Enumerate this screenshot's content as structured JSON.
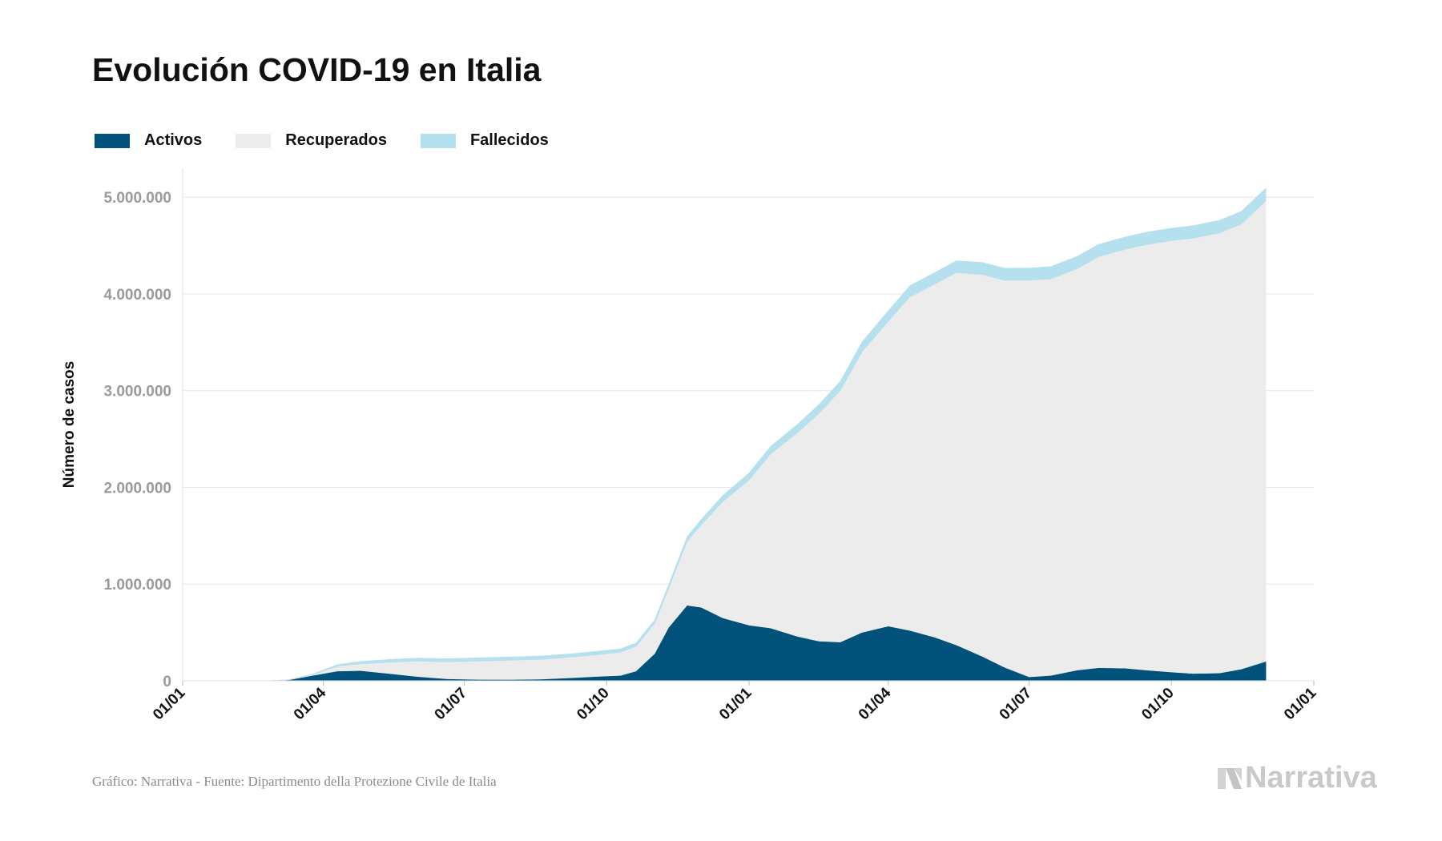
{
  "title": "Evolución COVID-19 en Italia",
  "footer": {
    "source": "Gráfico: Narrativa - Fuente: Dipartimento della Protezione Civile de Italia",
    "brand": "Narrativa"
  },
  "colors": {
    "activos": "#00527a",
    "recuperados": "#ececec",
    "fallecidos": "#b5e0ed",
    "grid": "#e6e6e6",
    "tick_label": "#9a9a9a",
    "axis_title": "#111111"
  },
  "chart_data": {
    "type": "area",
    "stacked": true,
    "title": "Evolución COVID-19 en Italia",
    "xlabel": "",
    "ylabel": "Número de casos",
    "ylim": [
      0,
      5300000
    ],
    "yticks": [
      0,
      1000000,
      2000000,
      3000000,
      4000000,
      5000000
    ],
    "ytick_labels": [
      "0",
      "1.000.000",
      "2.000.000",
      "3.000.000",
      "4.000.000",
      "5.000.000"
    ],
    "xticks": [
      "2020-01-01",
      "2020-04-01",
      "2020-07-01",
      "2020-10-01",
      "2021-01-01",
      "2021-04-01",
      "2021-07-01",
      "2021-10-01",
      "2022-01-01"
    ],
    "xtick_labels": [
      "01/01",
      "01/04",
      "01/07",
      "01/10",
      "01/01",
      "01/04",
      "01/07",
      "01/10",
      "01/01"
    ],
    "xlim": [
      "2020-01-01",
      "2022-01-01"
    ],
    "grid": true,
    "legend_position": "top-left",
    "x": [
      "2020-02-24",
      "2020-03-10",
      "2020-03-25",
      "2020-04-10",
      "2020-04-25",
      "2020-05-15",
      "2020-06-01",
      "2020-06-20",
      "2020-07-10",
      "2020-08-01",
      "2020-08-20",
      "2020-09-10",
      "2020-09-25",
      "2020-10-10",
      "2020-10-20",
      "2020-11-01",
      "2020-11-10",
      "2020-11-22",
      "2020-12-01",
      "2020-12-15",
      "2021-01-01",
      "2021-01-15",
      "2021-02-01",
      "2021-02-15",
      "2021-03-01",
      "2021-03-15",
      "2021-04-01",
      "2021-04-15",
      "2021-05-01",
      "2021-05-15",
      "2021-06-01",
      "2021-06-15",
      "2021-07-01",
      "2021-07-15",
      "2021-08-01",
      "2021-08-15",
      "2021-09-01",
      "2021-09-15",
      "2021-10-01",
      "2021-10-15",
      "2021-11-01",
      "2021-11-15",
      "2021-12-01"
    ],
    "series": [
      {
        "name": "Activos",
        "values": [
          200,
          10000,
          55000,
          100000,
          105000,
          72000,
          43000,
          20000,
          13000,
          12500,
          17000,
          32000,
          45000,
          55000,
          100000,
          280000,
          550000,
          780000,
          760000,
          650000,
          575000,
          545000,
          460000,
          410000,
          400000,
          500000,
          565000,
          520000,
          450000,
          370000,
          250000,
          140000,
          40000,
          55000,
          110000,
          135000,
          130000,
          110000,
          90000,
          75000,
          80000,
          120000,
          200000
        ]
      },
      {
        "name": "Recuperados",
        "values": [
          0,
          1000,
          8000,
          50000,
          70000,
          120000,
          160000,
          175000,
          190000,
          200000,
          205000,
          215000,
          225000,
          240000,
          255000,
          310000,
          400000,
          660000,
          850000,
          1200000,
          1500000,
          1800000,
          2100000,
          2350000,
          2600000,
          2900000,
          3150000,
          3450000,
          3650000,
          3850000,
          3950000,
          4000000,
          4100000,
          4100000,
          4150000,
          4250000,
          4330000,
          4400000,
          4460000,
          4500000,
          4550000,
          4600000,
          4760000
        ]
      },
      {
        "name": "Fallecidos",
        "values": [
          10,
          1000,
          7000,
          18000,
          26000,
          31000,
          33000,
          34500,
          35000,
          35200,
          35400,
          35600,
          35800,
          36000,
          37000,
          39000,
          42000,
          50000,
          58000,
          66000,
          74000,
          80000,
          88000,
          94000,
          98000,
          104000,
          112000,
          117000,
          121000,
          124000,
          126000,
          127000,
          127500,
          128000,
          128500,
          128700,
          129000,
          129300,
          130000,
          131000,
          132000,
          133000,
          135000
        ]
      }
    ]
  }
}
